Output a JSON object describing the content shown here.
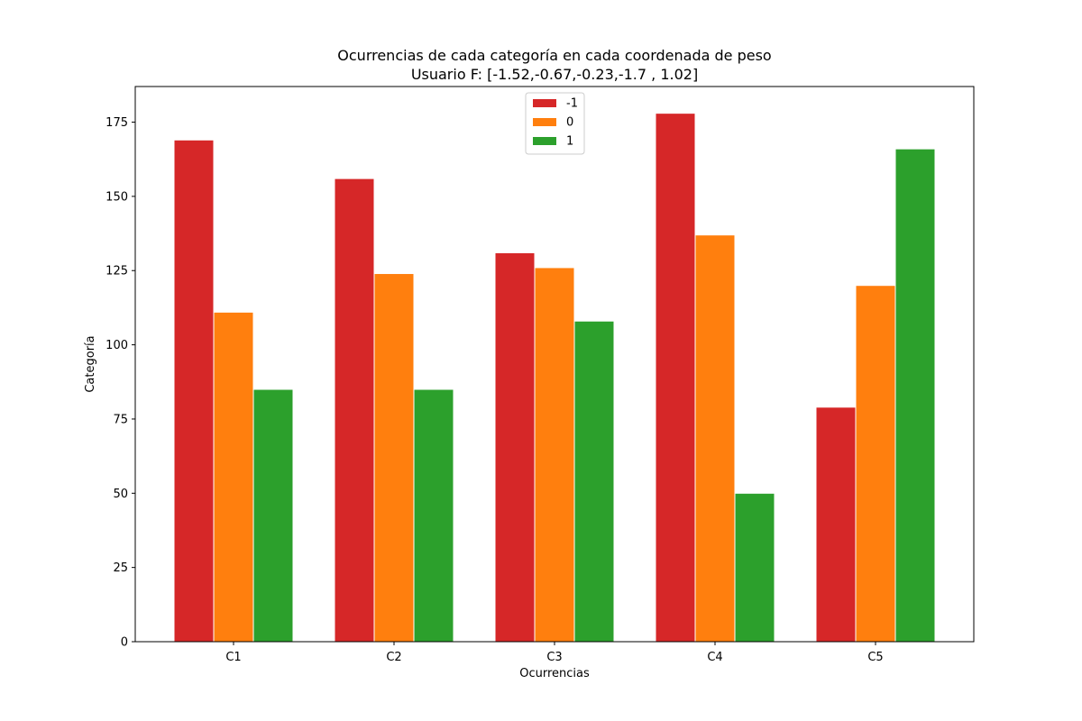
{
  "chart_data": {
    "type": "bar",
    "title": "Ocurrencias de cada categoría en cada coordenada de peso",
    "subtitle": "Usuario F: [-1.52,-0.67,-0.23,-1.7 , 1.02]",
    "xlabel": "Ocurrencias",
    "ylabel": "Categoría",
    "categories": [
      "C1",
      "C2",
      "C3",
      "C4",
      "C5"
    ],
    "ylim": [
      0,
      187
    ],
    "yticks": [
      0,
      25,
      50,
      75,
      100,
      125,
      150,
      175
    ],
    "grid": false,
    "legend_position": "top-center",
    "series": [
      {
        "name": "-1",
        "color": "#d62728",
        "values": [
          169,
          156,
          131,
          178,
          79
        ]
      },
      {
        "name": "0",
        "color": "#ff7f0e",
        "values": [
          111,
          124,
          126,
          137,
          120
        ]
      },
      {
        "name": "1",
        "color": "#2ca02c",
        "values": [
          85,
          85,
          108,
          50,
          166
        ]
      }
    ]
  }
}
